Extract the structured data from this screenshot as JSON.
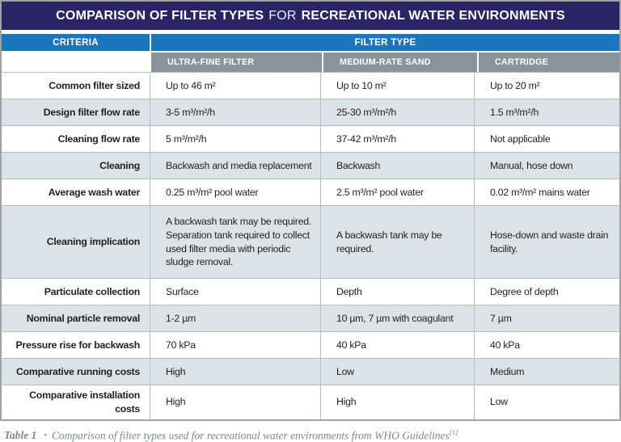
{
  "title": {
    "part1": "COMPARISON OF FILTER TYPES",
    "part2": "FOR",
    "part3": "RECREATIONAL WATER ENVIRONMENTS"
  },
  "table": {
    "criteria_header": "CRITERIA",
    "filter_type_header": "FILTER TYPE",
    "columns": [
      "ULTRA-FINE FILTER",
      "MEDIUM-RATE SAND",
      "CARTRIDGE"
    ],
    "rows": [
      {
        "label": "Common filter sized",
        "values": [
          "Up to 46 m²",
          "Up to 10 m²",
          "Up to 20 m²"
        ]
      },
      {
        "label": "Design filter flow rate",
        "values": [
          "3-5 m³/m²/h",
          "25-30 m³/m²/h",
          "1.5 m³/m²/h"
        ]
      },
      {
        "label": "Cleaning flow rate",
        "values": [
          "5 m³/m²/h",
          "37-42 m³/m²/h",
          "Not applicable"
        ]
      },
      {
        "label": "Cleaning",
        "values": [
          "Backwash and media replacement",
          "Backwash",
          "Manual, hose down"
        ]
      },
      {
        "label": "Average wash water",
        "values": [
          "0.25 m³/m² pool water",
          "2.5 m³/m² pool water",
          "0.02 m³/m² mains water"
        ]
      },
      {
        "label": "Cleaning implication",
        "values": [
          "A backwash tank may be required. Separation tank required to collect used filter media with periodic sludge removal.",
          "A backwash tank may be required.",
          "Hose-down and waste drain facility."
        ]
      },
      {
        "label": "Particulate collection",
        "values": [
          "Surface",
          "Depth",
          "Degree of depth"
        ]
      },
      {
        "label": "Nominal particle removal",
        "values": [
          "1-2 µm",
          "10 µm, 7 µm with coagulant",
          "7 µm"
        ]
      },
      {
        "label": "Pressure rise for backwash",
        "values": [
          "70 kPa",
          "40 kPa",
          "40 kPa"
        ]
      },
      {
        "label": "Comparative running costs",
        "values": [
          "High",
          "Low",
          "Medium"
        ]
      },
      {
        "label": "Comparative installation costs",
        "values": [
          "High",
          "High",
          "Low"
        ]
      }
    ]
  },
  "caption": {
    "label": "Table 1",
    "bullet": "•",
    "text": "Comparison of filter types used for recreational water environments from WHO Guidelines",
    "ref": "[1]"
  },
  "colors": {
    "banner_navy": "#2a2467",
    "header_blue": "#1c76bc",
    "subheader_gray": "#8a929a",
    "row_alt_light": "#dce3e6",
    "caption_gray": "#7e8795",
    "text_dark": "#231f20"
  }
}
